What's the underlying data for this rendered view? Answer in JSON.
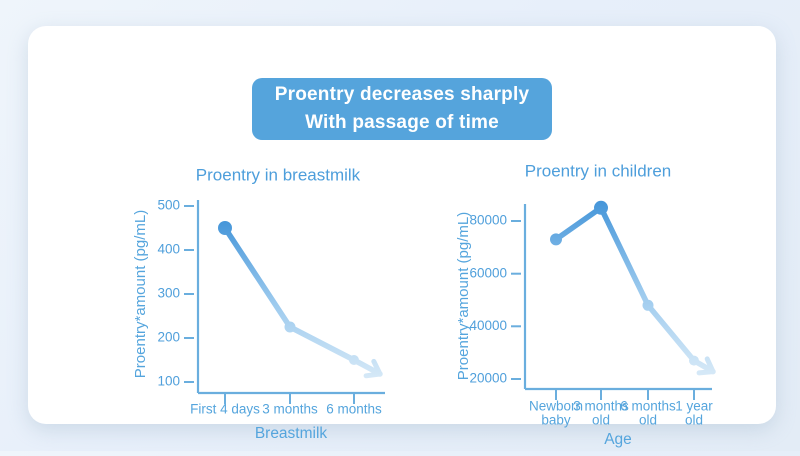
{
  "banner": {
    "line1": "Proentry decreases sharply",
    "line2": "With passage of time",
    "bg_color": "#55a4dc",
    "text_color": "#ffffff"
  },
  "colors": {
    "background": "#e8f0f8",
    "card": "#ffffff",
    "axis": "#6aaede",
    "title_text": "#4d9edb",
    "label_text": "#55a5dd",
    "tick_text": "#4f9fdb",
    "line_start": "#4495d9",
    "line_mid": "#9ccaee",
    "line_end": "#dcecf8"
  },
  "chart_data": [
    {
      "type": "line",
      "title": "Proentry in breastmilk",
      "ylabel": "Proentry*amount (pg/mL)",
      "xlabel": "Breastmilk",
      "categories": [
        "First 4 days",
        "3 months",
        "6 months"
      ],
      "values": [
        450,
        225,
        150
      ],
      "yticks": [
        100,
        200,
        300,
        400,
        500
      ],
      "ylim": [
        100,
        500
      ],
      "grid": false,
      "legend": false,
      "style": "gradient line fading into down-right arrow"
    },
    {
      "type": "line",
      "title": "Proentry in children",
      "ylabel": "Proentry*amount (pg/mL)",
      "xlabel": "Age",
      "categories": [
        [
          "Newborn",
          "baby"
        ],
        [
          "3 months",
          "old"
        ],
        [
          "6 months",
          "old"
        ],
        [
          "1 year",
          "old"
        ]
      ],
      "values": [
        73000,
        85000,
        48000,
        27000
      ],
      "yticks": [
        20000,
        40000,
        60000,
        80000
      ],
      "ylim": [
        20000,
        88000
      ],
      "grid": false,
      "legend": false,
      "style": "gradient line fading into down-right arrow"
    }
  ]
}
